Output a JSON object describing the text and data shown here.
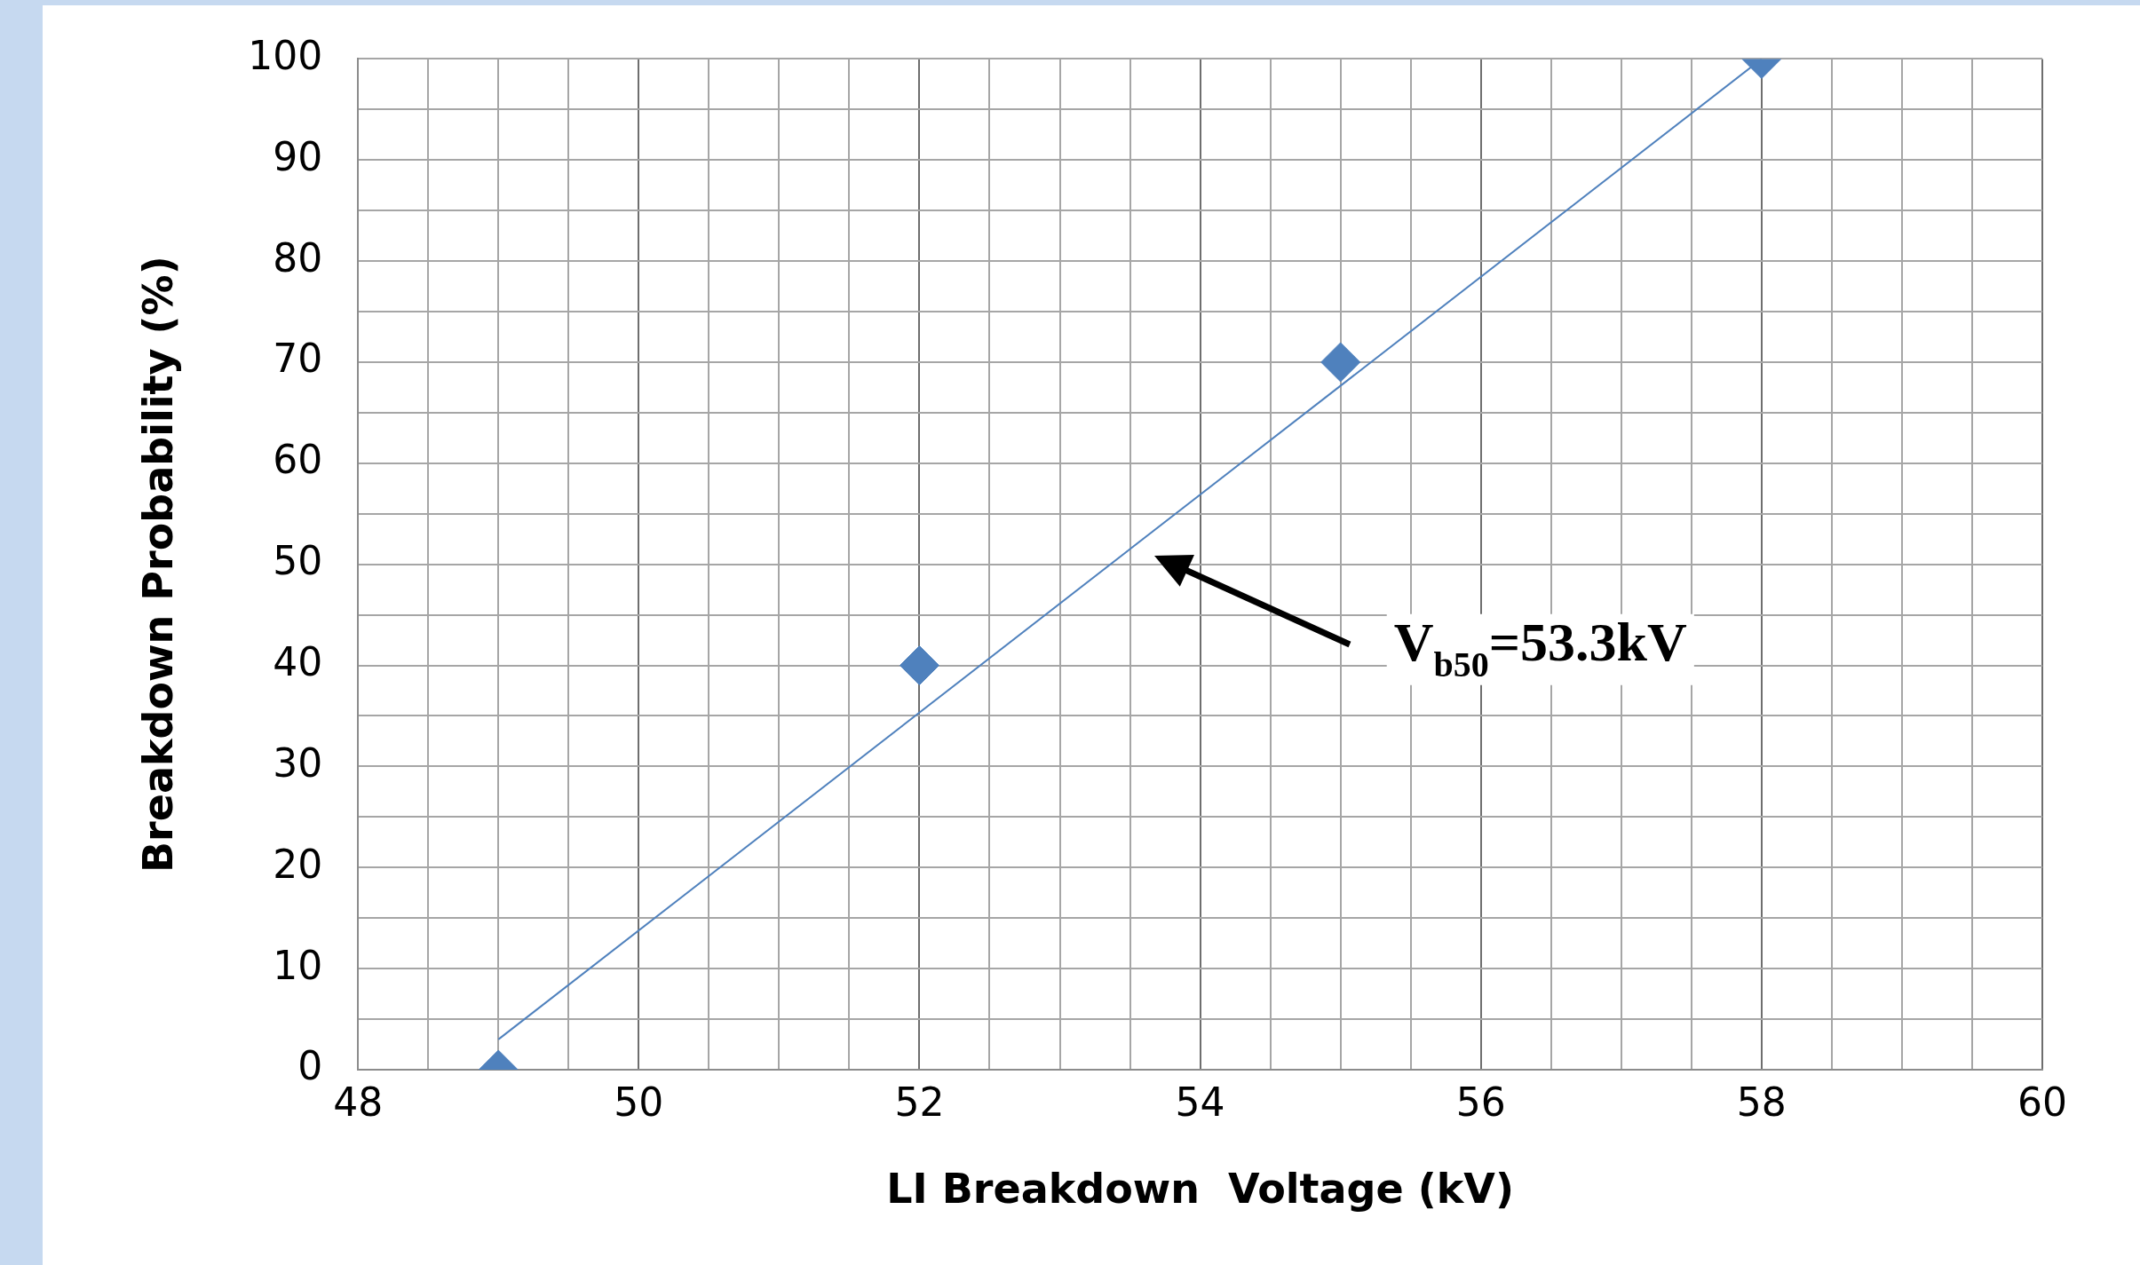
{
  "chart_data": {
    "type": "scatter",
    "xlabel": "LI Breakdown  Voltage (kV)",
    "ylabel": "Breakdown Probability (%)",
    "x": [
      49,
      52,
      55,
      58
    ],
    "series": [
      {
        "color": "#4f81bd",
        "values": [
          0,
          40,
          70,
          100
        ]
      },
      {
        "type": "line",
        "x": [
          49,
          58
        ],
        "values": [
          3,
          100
        ],
        "color": "#4f81bd",
        "marker": "none"
      }
    ],
    "marker": "diamond",
    "xlim": [
      48,
      60
    ],
    "ylim": [
      0,
      100
    ],
    "xticks": [
      48,
      {
        "value": 48.5,
        "label": null
      },
      {
        "value": 49,
        "label": null
      },
      {
        "value": 49.5,
        "label": null
      },
      50,
      {
        "value": 50.5,
        "label": null
      },
      {
        "value": 51,
        "label": null
      },
      {
        "value": 51.5,
        "label": null
      },
      52,
      {
        "value": 52.5,
        "label": null
      },
      {
        "value": 53,
        "label": null
      },
      {
        "value": 53.5,
        "label": null
      },
      54,
      {
        "value": 54.5,
        "label": null
      },
      {
        "value": 55,
        "label": null
      },
      {
        "value": 55.5,
        "label": null
      },
      56,
      {
        "value": 56.5,
        "label": null
      },
      {
        "value": 57,
        "label": null
      },
      {
        "value": 57.5,
        "label": null
      },
      58,
      {
        "value": 58.5,
        "label": null
      },
      {
        "value": 59,
        "label": null
      },
      {
        "value": 59.5,
        "label": null
      },
      60
    ],
    "yticks": [
      0,
      {
        "value": 5,
        "label": null
      },
      10,
      {
        "value": 15,
        "label": null
      },
      20,
      {
        "value": 25,
        "label": null
      },
      30,
      {
        "value": 35,
        "label": null
      },
      40,
      {
        "value": 45,
        "label": null
      },
      50,
      {
        "value": 55,
        "label": null
      },
      60,
      {
        "value": 65,
        "label": null
      },
      70,
      {
        "value": 75,
        "label": null
      },
      80,
      {
        "value": 85,
        "label": null
      },
      90,
      {
        "value": 95,
        "label": null
      },
      100
    ],
    "grid": true,
    "legend": false,
    "annotations": [
      "V$_{b50}$=53.3kV"
    ]
  }
}
